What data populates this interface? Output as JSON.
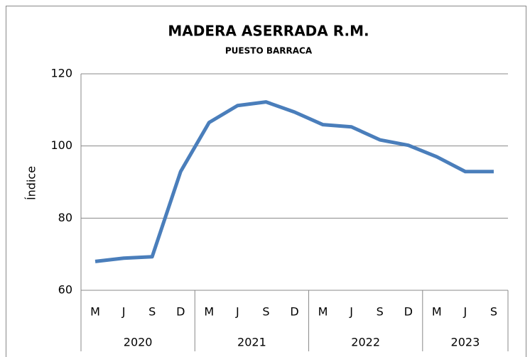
{
  "chart_data": {
    "type": "line",
    "title": "MADERA ASERRADA R.M.",
    "subtitle": "PUESTO BARRACA",
    "y_label": "Índice",
    "groups": [
      {
        "name": "2020",
        "categories": [
          "M",
          "J",
          "S",
          "D"
        ]
      },
      {
        "name": "2021",
        "categories": [
          "M",
          "J",
          "S",
          "D"
        ]
      },
      {
        "name": "2022",
        "categories": [
          "M",
          "J",
          "S",
          "D"
        ]
      },
      {
        "name": "2023",
        "categories": [
          "M",
          "J",
          "S"
        ]
      }
    ],
    "values": [
      68,
      68.9,
      69.3,
      92.9,
      106.5,
      111.2,
      112.2,
      109.4,
      105.9,
      105.3,
      101.7,
      100.2,
      97,
      92.9,
      92.9
    ],
    "color": "#4a7ebb",
    "ylim": [
      60,
      120
    ],
    "yticks": [
      60,
      80,
      100,
      120
    ],
    "grid": true
  }
}
